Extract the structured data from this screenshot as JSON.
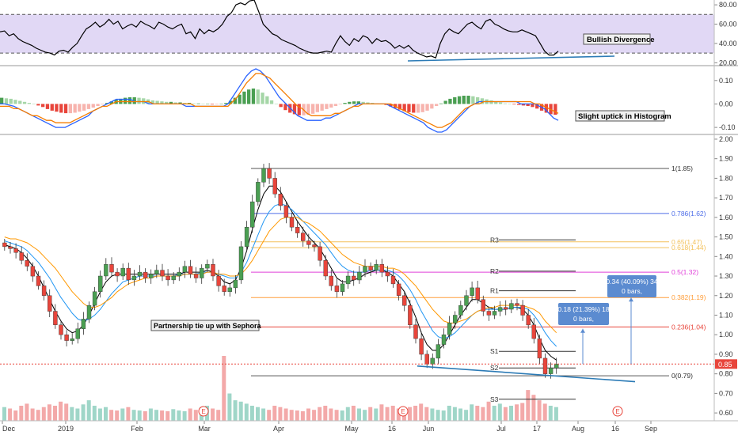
{
  "chart_data": [
    {
      "type": "line",
      "panel": "rsi",
      "yaxis_ticks": [
        "80.00",
        "60.00",
        "40.00",
        "20.00"
      ],
      "ylim": [
        17,
        85
      ],
      "band": [
        30,
        70
      ],
      "band_color": "#e1d8f5",
      "series": [
        {
          "color": "#000000",
          "values": [
            52,
            53,
            48,
            50,
            45,
            42,
            40,
            38,
            35,
            33,
            31,
            30,
            28,
            32,
            33,
            31,
            36,
            40,
            48,
            55,
            58,
            62,
            57,
            60,
            65,
            60,
            63,
            55,
            58,
            60,
            57,
            63,
            60,
            58,
            55,
            62,
            60,
            57,
            55,
            58,
            60,
            50,
            52,
            45,
            55,
            50,
            54,
            52,
            55,
            60,
            68,
            72,
            80,
            82,
            80,
            84,
            85,
            73,
            60,
            55,
            50,
            48,
            44,
            42,
            40,
            38,
            35,
            33,
            31,
            30,
            30,
            31,
            32,
            31,
            40,
            48,
            42,
            38,
            45,
            42,
            48,
            46,
            40,
            45,
            42,
            43,
            40,
            35,
            38,
            35,
            38,
            33,
            30,
            28,
            26,
            27,
            25,
            40,
            50,
            55,
            52,
            50,
            55,
            60,
            62,
            58,
            55,
            63,
            65,
            60,
            58,
            55,
            53,
            52,
            52,
            54,
            52,
            50,
            48,
            40,
            32,
            28,
            28,
            32
          ]
        }
      ],
      "annotations": [
        "Bullish Divergence"
      ]
    },
    {
      "type": "bar",
      "panel": "macd",
      "yaxis_ticks": [
        "0.10",
        "0.00",
        "-0.10"
      ],
      "ylim": [
        -0.13,
        0.16
      ],
      "up_color": "#4a9f52",
      "down_color": "#e8453b",
      "histogram": [
        0.012,
        0.011,
        0.01,
        0.008,
        0.006,
        0.004,
        0.002,
        0,
        -0.003,
        -0.006,
        -0.01,
        -0.013,
        -0.015,
        -0.017,
        -0.018,
        -0.018,
        -0.017,
        -0.015,
        -0.013,
        -0.01,
        -0.007,
        -0.004,
        -0.001,
        0.002,
        0.005,
        0.008,
        0.01,
        0.012,
        0.013,
        0.013,
        0.012,
        0.011,
        0.009,
        0.007,
        0.006,
        0.005,
        0.004,
        0.004,
        0.003,
        0.003,
        0.002,
        0.002,
        0.001,
        0.001,
        0,
        0,
        -0.001,
        -0.001,
        0,
        0.002,
        0.006,
        0.012,
        0.018,
        0.024,
        0.028,
        0.03,
        0.028,
        0.022,
        0.015,
        0.007,
        0,
        -0.006,
        -0.012,
        -0.017,
        -0.02,
        -0.022,
        -0.022,
        -0.021,
        -0.019,
        -0.016,
        -0.013,
        -0.01,
        -0.007,
        -0.004,
        -0.001,
        0.002,
        0.004,
        0.005,
        0.005,
        0.004,
        0.003,
        0.002,
        0.001,
        0,
        -0.002,
        -0.005,
        -0.008,
        -0.011,
        -0.014,
        -0.016,
        -0.017,
        -0.017,
        -0.016,
        -0.013,
        -0.009,
        -0.004,
        0.001,
        0.006,
        0.01,
        0.013,
        0.015,
        0.016,
        0.016,
        0.015,
        0.013,
        0.011,
        0.009,
        0.007,
        0.005,
        0.003,
        0.001,
        0,
        -0.001,
        -0.002,
        -0.003,
        -0.004,
        -0.006,
        -0.009,
        -0.013,
        -0.017,
        -0.02,
        -0.021
      ],
      "series": [
        {
          "color": "#2962ff",
          "values": [
            0.0,
            0.0,
            -0.005,
            -0.01,
            -0.02,
            -0.03,
            -0.04,
            -0.05,
            -0.06,
            -0.07,
            -0.08,
            -0.09,
            -0.1,
            -0.1,
            -0.1,
            -0.09,
            -0.08,
            -0.07,
            -0.06,
            -0.05,
            -0.03,
            -0.02,
            -0.01,
            0.0,
            0.01,
            0.02,
            0.02,
            0.02,
            0.02,
            0.01,
            0.01,
            0.01,
            0.0,
            0.0,
            0.0,
            0.0,
            0.0,
            0.0,
            0.0,
            0.0,
            -0.01,
            -0.01,
            -0.01,
            -0.01,
            -0.01,
            -0.01,
            -0.01,
            -0.01,
            -0.01,
            0.0,
            0.03,
            0.06,
            0.09,
            0.12,
            0.14,
            0.15,
            0.14,
            0.12,
            0.09,
            0.06,
            0.03,
            0.01,
            -0.01,
            -0.03,
            -0.05,
            -0.06,
            -0.07,
            -0.07,
            -0.07,
            -0.07,
            -0.06,
            -0.06,
            -0.05,
            -0.04,
            -0.03,
            -0.02,
            -0.01,
            0.0,
            0.0,
            0.0,
            0.0,
            0.0,
            0.0,
            0.0,
            -0.01,
            -0.02,
            -0.03,
            -0.04,
            -0.05,
            -0.06,
            -0.07,
            -0.08,
            -0.1,
            -0.11,
            -0.12,
            -0.12,
            -0.11,
            -0.09,
            -0.07,
            -0.05,
            -0.03,
            -0.01,
            0.0,
            0.01,
            0.01,
            0.01,
            0.01,
            0.01,
            0.01,
            0.01,
            0.01,
            0.01,
            0.0,
            0.0,
            0.0,
            0.0,
            -0.01,
            -0.02,
            -0.04,
            -0.06,
            -0.07
          ]
        },
        {
          "color": "#f57c00",
          "values": [
            -0.01,
            -0.01,
            -0.01,
            -0.02,
            -0.02,
            -0.03,
            -0.04,
            -0.05,
            -0.05,
            -0.06,
            -0.07,
            -0.07,
            -0.08,
            -0.08,
            -0.08,
            -0.08,
            -0.07,
            -0.06,
            -0.05,
            -0.04,
            -0.03,
            -0.02,
            -0.01,
            -0.01,
            0.0,
            0.01,
            0.01,
            0.01,
            0.01,
            0.01,
            0.01,
            0.01,
            0.01,
            0.0,
            0.0,
            0.0,
            0.0,
            0.0,
            0.0,
            0.0,
            0.0,
            0.0,
            -0.01,
            -0.01,
            -0.01,
            -0.01,
            -0.01,
            -0.01,
            -0.01,
            -0.01,
            0.01,
            0.03,
            0.06,
            0.09,
            0.11,
            0.13,
            0.13,
            0.12,
            0.11,
            0.09,
            0.07,
            0.05,
            0.03,
            0.01,
            -0.01,
            -0.02,
            -0.04,
            -0.05,
            -0.05,
            -0.05,
            -0.05,
            -0.05,
            -0.04,
            -0.04,
            -0.03,
            -0.02,
            -0.01,
            -0.01,
            0.0,
            0.0,
            0.0,
            0.0,
            0.0,
            0.0,
            0.0,
            -0.01,
            -0.02,
            -0.03,
            -0.04,
            -0.05,
            -0.06,
            -0.07,
            -0.08,
            -0.09,
            -0.1,
            -0.1,
            -0.09,
            -0.08,
            -0.06,
            -0.04,
            -0.02,
            -0.01,
            0.0,
            0.0,
            0.01,
            0.01,
            0.01,
            0.01,
            0.01,
            0.01,
            0.01,
            0.01,
            0.01,
            0.01,
            0.01,
            0.0,
            0.0,
            -0.01,
            -0.02,
            -0.03,
            -0.04
          ]
        }
      ],
      "annotations": [
        "Slight uptick in Histogram"
      ]
    },
    {
      "type": "candlestick",
      "panel": "price",
      "yaxis_ticks": [
        "2.00",
        "1.90",
        "1.80",
        "1.70",
        "1.60",
        "1.50",
        "1.40",
        "1.30",
        "1.20",
        "1.10",
        "1.00",
        "0.90",
        "0.80",
        "0.70",
        "0.60"
      ],
      "ylim": [
        0.56,
        2.02
      ],
      "xaxis_ticks": [
        "Dec",
        "2019",
        "Feb",
        "Mar",
        "Apr",
        "May",
        "16",
        "Jun",
        "Jul",
        "17",
        "Aug",
        "16",
        "Sep"
      ],
      "up_color": "#4a9f52",
      "down_color": "#e8453b",
      "close": [
        1.45,
        1.44,
        1.42,
        1.38,
        1.35,
        1.3,
        1.25,
        1.2,
        1.12,
        1.05,
        1.0,
        0.97,
        0.98,
        1.03,
        1.08,
        1.15,
        1.22,
        1.3,
        1.36,
        1.32,
        1.3,
        1.34,
        1.28,
        1.3,
        1.32,
        1.29,
        1.31,
        1.33,
        1.3,
        1.28,
        1.3,
        1.32,
        1.35,
        1.31,
        1.29,
        1.34,
        1.36,
        1.3,
        1.25,
        1.22,
        1.24,
        1.28,
        1.45,
        1.55,
        1.68,
        1.78,
        1.85,
        1.8,
        1.72,
        1.66,
        1.6,
        1.55,
        1.52,
        1.48,
        1.46,
        1.45,
        1.38,
        1.3,
        1.25,
        1.22,
        1.26,
        1.3,
        1.28,
        1.32,
        1.35,
        1.33,
        1.36,
        1.32,
        1.3,
        1.26,
        1.2,
        1.15,
        1.05,
        0.98,
        0.9,
        0.85,
        0.88,
        0.95,
        1.0,
        1.06,
        1.1,
        1.15,
        1.2,
        1.24,
        1.18,
        1.12,
        1.1,
        1.12,
        1.14,
        1.13,
        1.16,
        1.15,
        1.1,
        1.05,
        0.98,
        0.88,
        0.8,
        0.83,
        0.85
      ],
      "volume": [
        20,
        18,
        15,
        22,
        25,
        18,
        16,
        20,
        24,
        22,
        28,
        25,
        20,
        18,
        24,
        30,
        22,
        18,
        20,
        16,
        15,
        18,
        20,
        16,
        15,
        14,
        18,
        16,
        15,
        14,
        17,
        15,
        14,
        18,
        16,
        20,
        22,
        18,
        16,
        95,
        40,
        30,
        28,
        25,
        22,
        20,
        18,
        16,
        22,
        20,
        18,
        16,
        15,
        14,
        18,
        16,
        20,
        22,
        18,
        16,
        15,
        20,
        22,
        18,
        16,
        20,
        18,
        24,
        20,
        22,
        18,
        16,
        20,
        22,
        25,
        20,
        18,
        16,
        15,
        22,
        20,
        18,
        16,
        24,
        22,
        20,
        28,
        22,
        25,
        20,
        22,
        24,
        26,
        45,
        38,
        30,
        25,
        22,
        20
      ],
      "series": [
        {
          "color": "#000000",
          "values": [
            1.46,
            1.45,
            1.44,
            1.42,
            1.39,
            1.35,
            1.3,
            1.24,
            1.18,
            1.12,
            1.07,
            1.03,
            1.01,
            1.02,
            1.05,
            1.1,
            1.16,
            1.22,
            1.27,
            1.3,
            1.31,
            1.31,
            1.31,
            1.31,
            1.31,
            1.31,
            1.31,
            1.31,
            1.31,
            1.31,
            1.31,
            1.31,
            1.32,
            1.32,
            1.32,
            1.32,
            1.33,
            1.32,
            1.3,
            1.27,
            1.26,
            1.28,
            1.34,
            1.43,
            1.54,
            1.64,
            1.72,
            1.76,
            1.76,
            1.73,
            1.68,
            1.63,
            1.58,
            1.54,
            1.5,
            1.47,
            1.44,
            1.39,
            1.34,
            1.29,
            1.27,
            1.27,
            1.28,
            1.29,
            1.31,
            1.32,
            1.33,
            1.33,
            1.32,
            1.3,
            1.26,
            1.22,
            1.16,
            1.09,
            1.01,
            0.95,
            0.92,
            0.92,
            0.95,
            1.0,
            1.05,
            1.1,
            1.14,
            1.18,
            1.18,
            1.16,
            1.14,
            1.13,
            1.13,
            1.13,
            1.14,
            1.14,
            1.13,
            1.1,
            1.05,
            0.98,
            0.92,
            0.89,
            0.87
          ]
        },
        {
          "color": "#2196f3",
          "values": [
            1.48,
            1.47,
            1.46,
            1.45,
            1.43,
            1.4,
            1.37,
            1.33,
            1.29,
            1.24,
            1.19,
            1.15,
            1.11,
            1.08,
            1.07,
            1.08,
            1.1,
            1.13,
            1.17,
            1.21,
            1.24,
            1.27,
            1.28,
            1.29,
            1.3,
            1.3,
            1.3,
            1.3,
            1.3,
            1.3,
            1.3,
            1.31,
            1.31,
            1.31,
            1.31,
            1.32,
            1.32,
            1.32,
            1.31,
            1.3,
            1.29,
            1.29,
            1.32,
            1.37,
            1.44,
            1.51,
            1.58,
            1.63,
            1.66,
            1.67,
            1.66,
            1.64,
            1.61,
            1.58,
            1.55,
            1.52,
            1.49,
            1.46,
            1.42,
            1.38,
            1.35,
            1.33,
            1.32,
            1.32,
            1.32,
            1.33,
            1.33,
            1.33,
            1.33,
            1.32,
            1.3,
            1.27,
            1.23,
            1.18,
            1.12,
            1.07,
            1.02,
            0.99,
            0.98,
            0.99,
            1.01,
            1.04,
            1.07,
            1.1,
            1.12,
            1.13,
            1.13,
            1.13,
            1.13,
            1.13,
            1.14,
            1.14,
            1.14,
            1.13,
            1.1,
            1.06,
            1.01,
            0.97,
            0.94
          ]
        },
        {
          "color": "#ff9800",
          "values": [
            1.5,
            1.49,
            1.49,
            1.48,
            1.47,
            1.45,
            1.43,
            1.4,
            1.37,
            1.34,
            1.3,
            1.26,
            1.22,
            1.19,
            1.16,
            1.14,
            1.14,
            1.15,
            1.17,
            1.19,
            1.22,
            1.24,
            1.26,
            1.27,
            1.28,
            1.29,
            1.29,
            1.3,
            1.3,
            1.3,
            1.3,
            1.3,
            1.31,
            1.31,
            1.31,
            1.31,
            1.32,
            1.32,
            1.31,
            1.31,
            1.3,
            1.3,
            1.31,
            1.34,
            1.38,
            1.43,
            1.48,
            1.53,
            1.56,
            1.59,
            1.6,
            1.6,
            1.6,
            1.58,
            1.57,
            1.55,
            1.53,
            1.5,
            1.47,
            1.44,
            1.41,
            1.39,
            1.37,
            1.36,
            1.35,
            1.35,
            1.35,
            1.35,
            1.34,
            1.34,
            1.33,
            1.31,
            1.28,
            1.25,
            1.21,
            1.17,
            1.13,
            1.1,
            1.07,
            1.06,
            1.06,
            1.07,
            1.08,
            1.1,
            1.12,
            1.13,
            1.14,
            1.14,
            1.15,
            1.15,
            1.15,
            1.15,
            1.15,
            1.14,
            1.13,
            1.11,
            1.07,
            1.04,
            1.01
          ]
        }
      ],
      "fib_levels": [
        {
          "label": "1(1.85)",
          "value": 1.85,
          "color": "#555555"
        },
        {
          "label": "0.786(1.62)",
          "value": 1.62,
          "color": "#4e6ee8"
        },
        {
          "label": "0.65(1.47)",
          "value": 1.475,
          "color": "#f3c15b"
        },
        {
          "label": "0.618(1.44)",
          "value": 1.445,
          "color": "#f3c15b"
        },
        {
          "label": "0.5(1.32)",
          "value": 1.32,
          "color": "#e040d9"
        },
        {
          "label": "0.382(1.19)",
          "value": 1.19,
          "color": "#ff9e3b"
        },
        {
          "label": "0.236(1.04)",
          "value": 1.04,
          "color": "#e8453b"
        },
        {
          "label": "0(0.79)",
          "value": 0.79,
          "color": "#555555"
        }
      ],
      "pivots": [
        {
          "label": "R3",
          "value": 1.485
        },
        {
          "label": "R2",
          "value": 1.325
        },
        {
          "label": "R1",
          "value": 1.225
        },
        {
          "label": "S1",
          "value": 0.915
        },
        {
          "label": "S2",
          "value": 0.83
        },
        {
          "label": "S3",
          "value": 0.67
        }
      ],
      "current_price": "0.85",
      "measure_boxes": [
        {
          "line1": "0.18 (21.39%) 18",
          "line2": "0 bars,"
        },
        {
          "line1": "0.34 (40.09%) 34",
          "line2": "0 bars,"
        }
      ],
      "annotations": [
        "Partnership tie up with Sephora"
      ],
      "event_markers": [
        "E",
        "E",
        "E"
      ]
    }
  ]
}
